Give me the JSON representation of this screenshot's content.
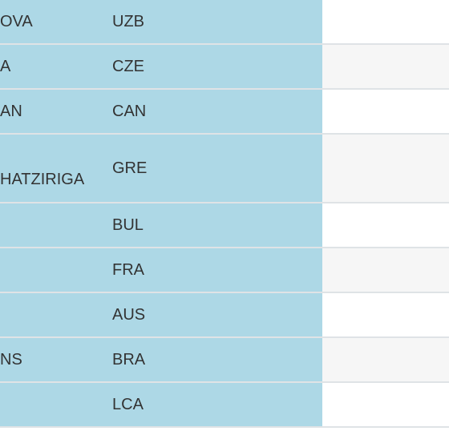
{
  "table": {
    "rows": [
      {
        "name": "OVA",
        "country": "UZB"
      },
      {
        "name": "A",
        "country": "CZE"
      },
      {
        "name": "AN",
        "country": "CAN"
      },
      {
        "name": "HATZIRIGA",
        "country": "GRE",
        "tall": true
      },
      {
        "country": "BUL"
      },
      {
        "country": "FRA"
      },
      {
        "country": "AUS"
      },
      {
        "name": "NS",
        "country": "BRA"
      },
      {
        "country": "LCA"
      }
    ]
  }
}
